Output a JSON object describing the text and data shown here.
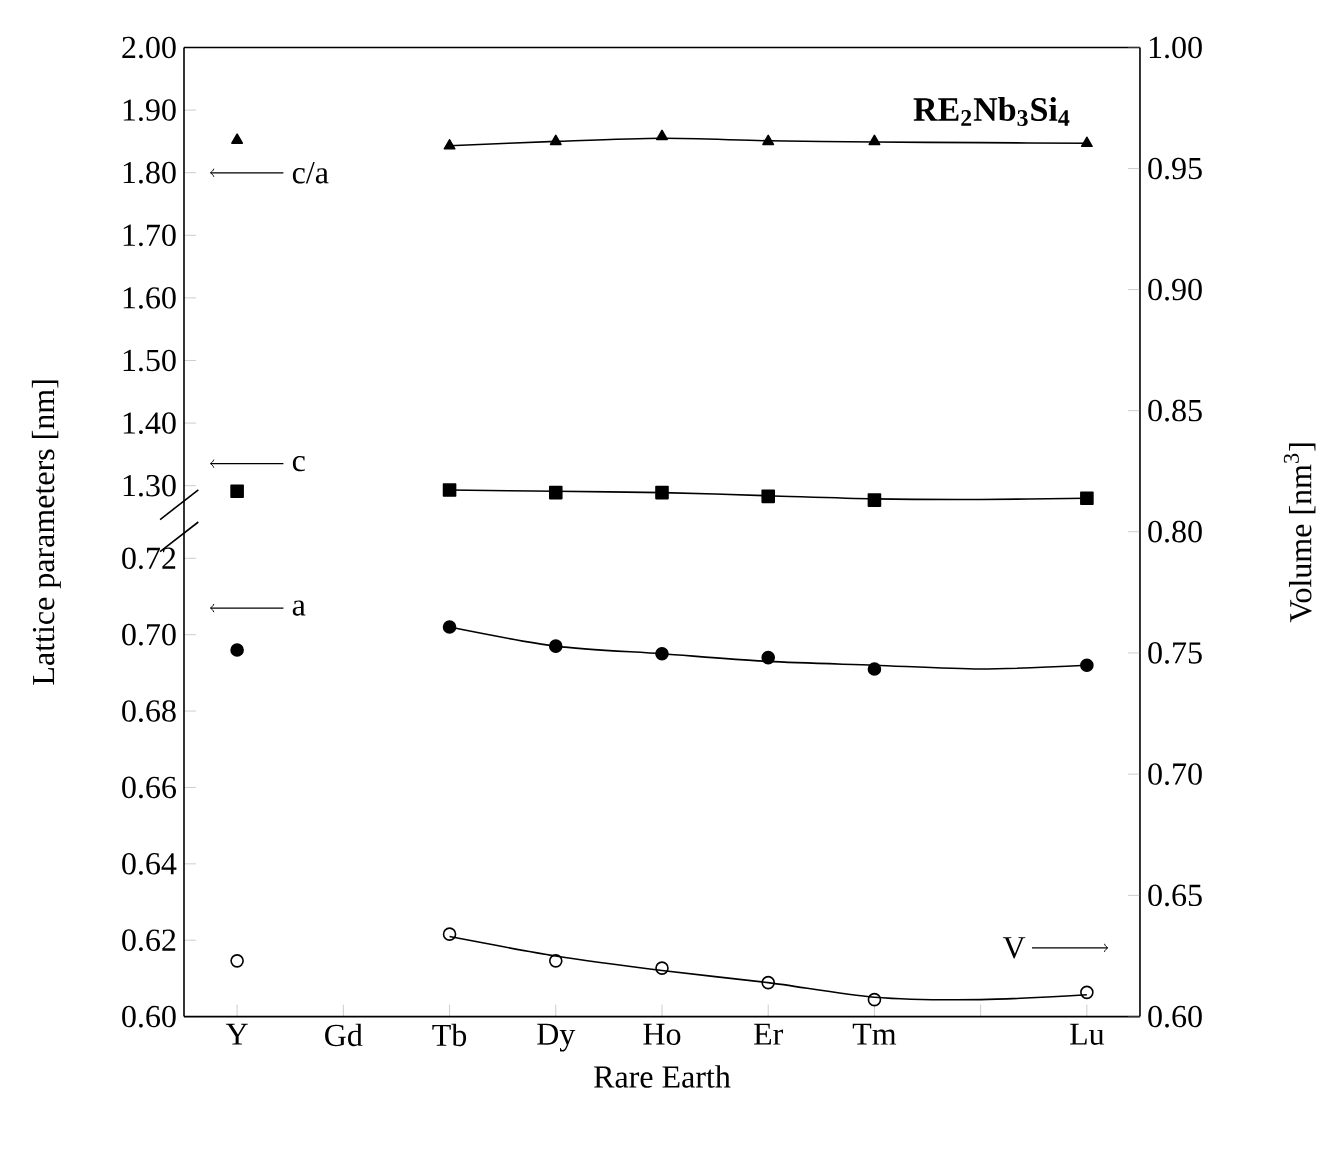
{
  "chart_data": [
    {
      "type": "scatter",
      "title": "RE$_{2}$Nb$_{3}$Si$_{4}$",
      "categories": [
        null,
        null,
        null,
        null,
        null,
        null,
        null,
        null,
        null
      ],
      "series": [
        {
          "marker": "triangle",
          "color": "#000000",
          "values": [
            1.852,
            null,
            1.843,
            1.85,
            1.858,
            1.85,
            1.85,
            null,
            1.847
          ]
        },
        {
          "marker": "square",
          "color": "#000000",
          "values": [
            1.291,
            null,
            1.293,
            1.289,
            1.289,
            1.283,
            1.277,
            null,
            1.28
          ]
        },
        {
          "type": "line",
          "marker": "none",
          "color": "#000000",
          "values": [
            null,
            null,
            1.843,
            1.85,
            1.855,
            1.851,
            1.849,
            1.848,
            1.847
          ]
        },
        {
          "type": "line",
          "marker": "none",
          "color": "#000000",
          "values": [
            null,
            null,
            1.293,
            1.291,
            1.289,
            1.284,
            1.279,
            1.278,
            1.28
          ]
        }
      ],
      "ylim": [
        1.242,
        2.0
      ],
      "yticks": [
        {
          "value": 1.3,
          "label": "1.30"
        },
        {
          "value": 1.4,
          "label": "1.40"
        },
        {
          "value": 1.5,
          "label": "1.50"
        },
        {
          "value": 1.6,
          "label": "1.60"
        },
        {
          "value": 1.7,
          "label": "1.70"
        },
        {
          "value": 1.8,
          "label": "1.80"
        },
        {
          "value": 1.9,
          "label": "1.90"
        },
        {
          "value": 2.0,
          "label": "2.00"
        }
      ],
      "y2lim": [
        0.804,
        1.0
      ],
      "y2ticks": [
        {
          "value": 0.85,
          "label": "0.85"
        },
        {
          "value": 0.9,
          "label": "0.90"
        },
        {
          "value": 0.95,
          "label": "0.95"
        },
        {
          "value": 1.0,
          "label": "1.00"
        }
      ],
      "tick_labels": "y",
      "line_style": "solid",
      "annotations": [
        "c/a",
        "c"
      ]
    },
    {
      "type": "scatter",
      "xlabel": "Rare Earth",
      "ylabel": "Lattice parameters [nm]",
      "y2label": "Volume [nm$^{3}$]",
      "categories": [
        "Y",
        "Gd",
        "Tb",
        "Dy",
        "Ho",
        "Er",
        "Tm",
        null,
        "Lu"
      ],
      "series": [
        {
          "marker": "circle",
          "color": "#000000",
          "values": [
            0.696,
            null,
            0.702,
            0.697,
            0.695,
            0.694,
            0.691,
            null,
            0.692
          ]
        },
        {
          "marker": "circle",
          "color": "#000000",
          "axis": "y2",
          "values": [
            0.623,
            null,
            0.634,
            0.623,
            0.62,
            0.614,
            0.607,
            null,
            0.61
          ]
        },
        {
          "type": "line",
          "marker": "none",
          "color": "#000000",
          "values": [
            null,
            null,
            0.702,
            0.697,
            0.695,
            0.693,
            0.692,
            0.691,
            0.692
          ]
        },
        {
          "type": "line",
          "marker": "none",
          "color": "#000000",
          "axis": "y2",
          "values": [
            null,
            null,
            0.633,
            0.625,
            0.619,
            0.614,
            0.608,
            0.607,
            0.609
          ]
        }
      ],
      "ylim": [
        0.6,
        0.7295
      ],
      "yticks": [
        {
          "value": 0.6,
          "label": "0.60"
        },
        {
          "value": 0.62,
          "label": "0.62"
        },
        {
          "value": 0.64,
          "label": "0.64"
        },
        {
          "value": 0.66,
          "label": "0.66"
        },
        {
          "value": 0.68,
          "label": "0.68"
        },
        {
          "value": 0.7,
          "label": "0.70"
        },
        {
          "value": 0.72,
          "label": "0.72"
        }
      ],
      "y2lim": [
        0.6,
        0.804
      ],
      "y2ticks": [
        {
          "value": 0.6,
          "label": "0.60"
        },
        {
          "value": 0.65,
          "label": "0.65"
        },
        {
          "value": 0.7,
          "label": "0.70"
        },
        {
          "value": 0.75,
          "label": "0.75"
        },
        {
          "value": 0.8,
          "label": "0.80"
        }
      ],
      "line_style": "solid",
      "annotations": [
        "a",
        "V"
      ]
    }
  ]
}
